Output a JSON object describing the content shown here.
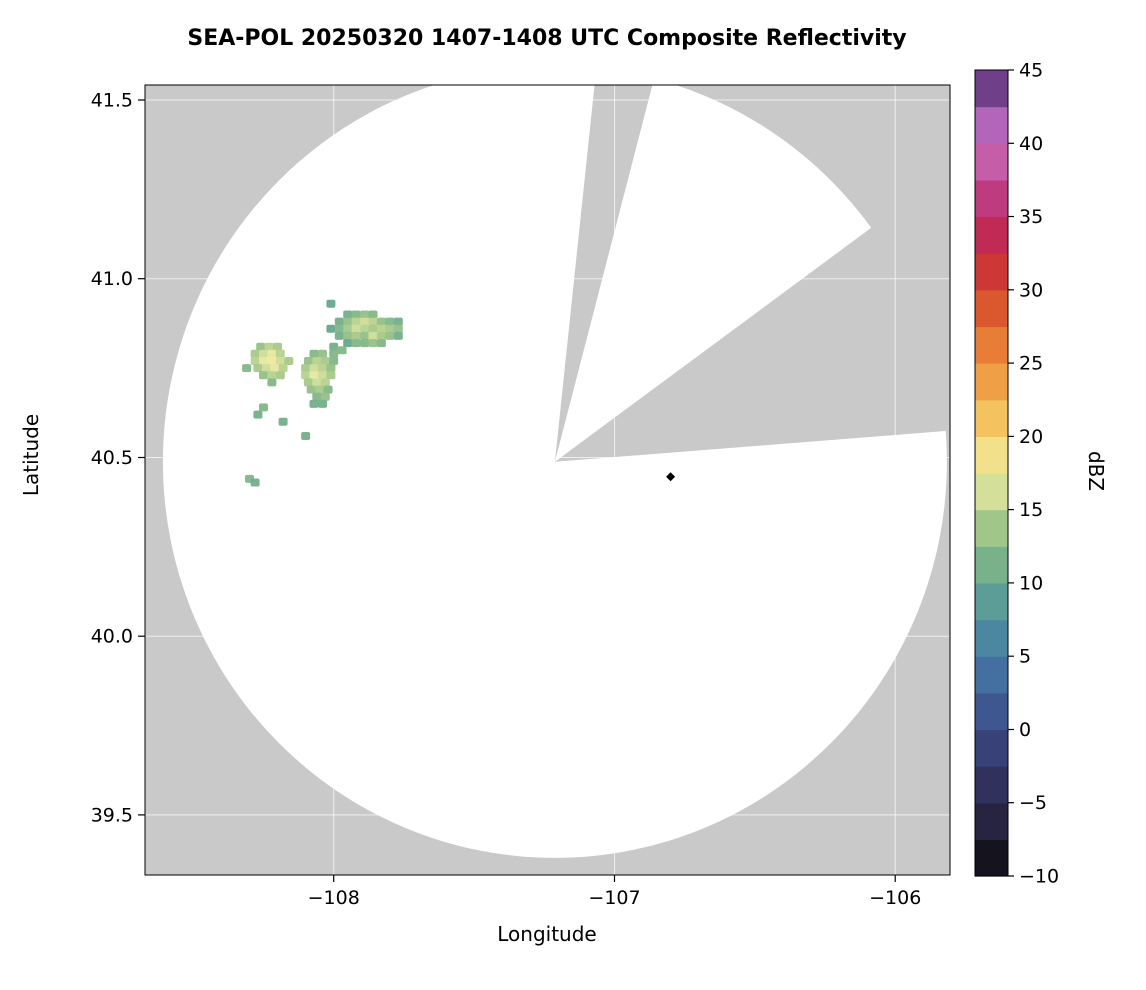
{
  "title": "SEA-POL 20250320 1407-1408 UTC Composite Reflectivity",
  "colors": {
    "no_coverage_gray": "#c9c9c9",
    "coverage_white": "#ffffff",
    "grid_white": "#ffffff",
    "frame_black": "#000000",
    "marker_black": "#000000",
    "colormap_stops": [
      [
        -10,
        "#080808"
      ],
      [
        -7.5,
        "#211d33"
      ],
      [
        -5,
        "#2c2a4f"
      ],
      [
        -2.5,
        "#35386b"
      ],
      [
        0,
        "#3c4a86"
      ],
      [
        2.5,
        "#40639b"
      ],
      [
        5,
        "#457ca4"
      ],
      [
        7.5,
        "#52929f"
      ],
      [
        10,
        "#66a78f"
      ],
      [
        12.5,
        "#8aba85"
      ],
      [
        15,
        "#b8d28d"
      ],
      [
        17.5,
        "#f0eca6"
      ],
      [
        20,
        "#f6d36e"
      ],
      [
        22.5,
        "#f2b150"
      ],
      [
        25,
        "#ec8f3d"
      ],
      [
        27.5,
        "#e26a31"
      ],
      [
        30,
        "#d4452c"
      ],
      [
        32.5,
        "#c52a40"
      ],
      [
        35,
        "#bc2a69"
      ],
      [
        37.5,
        "#c24b94"
      ],
      [
        40,
        "#ca6fbe"
      ],
      [
        42.5,
        "#9a5ab8"
      ],
      [
        45,
        "#46245c"
      ]
    ]
  },
  "chart_data": {
    "type": "heatmap",
    "title": "SEA-POL 20250320 1407-1408 UTC Composite Reflectivity",
    "xlabel": "Longitude",
    "ylabel": "Latitude",
    "units": "dBZ",
    "xlim": [
      -108.672,
      -105.805
    ],
    "ylim": [
      39.332,
      41.542
    ],
    "grid": true,
    "xticks": [
      {
        "v": -108,
        "label": "−108"
      },
      {
        "v": -107,
        "label": "−107"
      },
      {
        "v": -106,
        "label": "−106"
      }
    ],
    "yticks": [
      {
        "v": 39.5,
        "label": "39.5"
      },
      {
        "v": 40.0,
        "label": "40.0"
      },
      {
        "v": 40.5,
        "label": "40.5"
      },
      {
        "v": 41.0,
        "label": "41.0"
      },
      {
        "v": 41.5,
        "label": "41.5"
      }
    ],
    "colorbar": {
      "label": "dBZ",
      "min": -10,
      "max": 45,
      "step": 2.5,
      "position": "right",
      "ticks": [
        {
          "v": 45,
          "label": "45"
        },
        {
          "v": 40,
          "label": "40"
        },
        {
          "v": 35,
          "label": "35"
        },
        {
          "v": 30,
          "label": "30"
        },
        {
          "v": 25,
          "label": "25"
        },
        {
          "v": 20,
          "label": "20"
        },
        {
          "v": 15,
          "label": "15"
        },
        {
          "v": 10,
          "label": "10"
        },
        {
          "v": 5,
          "label": "5"
        },
        {
          "v": 0,
          "label": "0"
        },
        {
          "v": -5,
          "label": "−5"
        },
        {
          "v": -10,
          "label": "−10"
        }
      ]
    },
    "radar": {
      "center_lon": -107.212,
      "center_lat": 40.488,
      "range_lon_deg": 1.396,
      "range_lat_deg": 1.108,
      "blocked_sectors_azimuth_deg": [
        [
          6,
          14.5
        ],
        [
          53.5,
          85.5
        ]
      ]
    },
    "site_marker": {
      "lon": -106.8,
      "lat": 40.446
    },
    "echoes_lon_lat_dbz": [
      [
        -108.01,
        40.93,
        10
      ],
      [
        -107.95,
        40.9,
        11
      ],
      [
        -107.92,
        40.9,
        12
      ],
      [
        -107.89,
        40.9,
        13
      ],
      [
        -107.86,
        40.9,
        12
      ],
      [
        -107.98,
        40.88,
        11
      ],
      [
        -107.95,
        40.88,
        13
      ],
      [
        -107.92,
        40.88,
        15
      ],
      [
        -107.89,
        40.88,
        16
      ],
      [
        -107.86,
        40.88,
        15
      ],
      [
        -107.83,
        40.88,
        13
      ],
      [
        -107.8,
        40.88,
        12
      ],
      [
        -107.77,
        40.88,
        11
      ],
      [
        -108.01,
        40.86,
        10
      ],
      [
        -107.98,
        40.86,
        12
      ],
      [
        -107.95,
        40.86,
        14
      ],
      [
        -107.92,
        40.86,
        16
      ],
      [
        -107.89,
        40.86,
        15
      ],
      [
        -107.86,
        40.86,
        14
      ],
      [
        -107.83,
        40.86,
        15
      ],
      [
        -107.8,
        40.86,
        14
      ],
      [
        -107.77,
        40.86,
        13
      ],
      [
        -107.98,
        40.84,
        11
      ],
      [
        -107.95,
        40.84,
        13
      ],
      [
        -107.92,
        40.84,
        14
      ],
      [
        -107.89,
        40.84,
        13
      ],
      [
        -107.86,
        40.84,
        16
      ],
      [
        -107.83,
        40.84,
        14
      ],
      [
        -107.8,
        40.84,
        13
      ],
      [
        -107.77,
        40.84,
        11
      ],
      [
        -107.95,
        40.82,
        10
      ],
      [
        -107.92,
        40.82,
        12
      ],
      [
        -107.89,
        40.82,
        12
      ],
      [
        -107.86,
        40.82,
        13
      ],
      [
        -107.83,
        40.82,
        12
      ],
      [
        -108.0,
        40.81,
        11
      ],
      [
        -107.97,
        40.8,
        12
      ],
      [
        -108.26,
        40.81,
        13
      ],
      [
        -108.23,
        40.81,
        15
      ],
      [
        -108.2,
        40.81,
        14
      ],
      [
        -108.28,
        40.79,
        14
      ],
      [
        -108.25,
        40.79,
        16
      ],
      [
        -108.22,
        40.79,
        17
      ],
      [
        -108.19,
        40.79,
        15
      ],
      [
        -108.28,
        40.77,
        15
      ],
      [
        -108.25,
        40.77,
        17
      ],
      [
        -108.22,
        40.77,
        18
      ],
      [
        -108.19,
        40.77,
        16
      ],
      [
        -108.16,
        40.77,
        14
      ],
      [
        -108.27,
        40.75,
        14
      ],
      [
        -108.24,
        40.75,
        16
      ],
      [
        -108.21,
        40.75,
        17
      ],
      [
        -108.18,
        40.75,
        15
      ],
      [
        -108.31,
        40.75,
        12
      ],
      [
        -108.25,
        40.73,
        13
      ],
      [
        -108.22,
        40.73,
        15
      ],
      [
        -108.19,
        40.73,
        14
      ],
      [
        -108.22,
        40.71,
        12
      ],
      [
        -108.07,
        40.79,
        12
      ],
      [
        -108.04,
        40.79,
        13
      ],
      [
        -108.0,
        40.79,
        12
      ],
      [
        -108.09,
        40.77,
        13
      ],
      [
        -108.06,
        40.77,
        15
      ],
      [
        -108.03,
        40.77,
        14
      ],
      [
        -108.0,
        40.77,
        12
      ],
      [
        -108.1,
        40.75,
        14
      ],
      [
        -108.07,
        40.75,
        16
      ],
      [
        -108.04,
        40.75,
        15
      ],
      [
        -108.01,
        40.75,
        13
      ],
      [
        -108.1,
        40.73,
        15
      ],
      [
        -108.07,
        40.73,
        17
      ],
      [
        -108.04,
        40.73,
        16
      ],
      [
        -108.01,
        40.73,
        14
      ],
      [
        -108.09,
        40.71,
        14
      ],
      [
        -108.06,
        40.71,
        16
      ],
      [
        -108.03,
        40.71,
        15
      ],
      [
        -108.08,
        40.69,
        13
      ],
      [
        -108.05,
        40.69,
        14
      ],
      [
        -108.02,
        40.69,
        12
      ],
      [
        -108.06,
        40.67,
        12
      ],
      [
        -108.03,
        40.67,
        13
      ],
      [
        -108.07,
        40.65,
        11
      ],
      [
        -108.04,
        40.65,
        11
      ],
      [
        -108.25,
        40.64,
        12
      ],
      [
        -108.27,
        40.62,
        11
      ],
      [
        -108.18,
        40.6,
        11
      ],
      [
        -108.1,
        40.56,
        11
      ],
      [
        -108.3,
        40.44,
        12
      ],
      [
        -108.28,
        40.43,
        11
      ]
    ]
  }
}
